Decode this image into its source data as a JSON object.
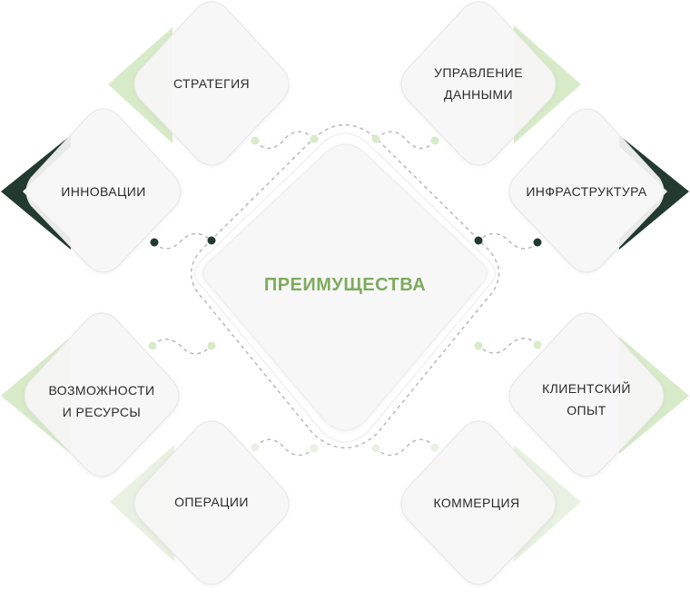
{
  "center": {
    "title": "ПРЕИМУЩЕСТВА"
  },
  "items": [
    {
      "id": "strategy",
      "lines": [
        "СТРАТЕГИЯ"
      ]
    },
    {
      "id": "data",
      "lines": [
        "УПРАВЛЕНИЕ",
        "ДАННЫМИ"
      ]
    },
    {
      "id": "innovation",
      "lines": [
        "ИННОВАЦИИ"
      ]
    },
    {
      "id": "infrastructure",
      "lines": [
        "ИНФРАСТРУКТУРА"
      ]
    },
    {
      "id": "capabilities",
      "lines": [
        "ВОЗМОЖНОСТИ",
        "И РЕСУРСЫ"
      ]
    },
    {
      "id": "client",
      "lines": [
        "КЛИЕНТСКИЙ",
        "ОПЫТ"
      ]
    },
    {
      "id": "operations",
      "lines": [
        "ОПЕРАЦИИ"
      ]
    },
    {
      "id": "commerce",
      "lines": [
        "КОММЕРЦИЯ"
      ]
    }
  ],
  "colors": {
    "accent_green": "#7eab5d",
    "light_green": "#d8ebc9",
    "pale_green": "#e9f1e2",
    "dark_green": "#223a30",
    "connector": "#b8b8b8"
  }
}
